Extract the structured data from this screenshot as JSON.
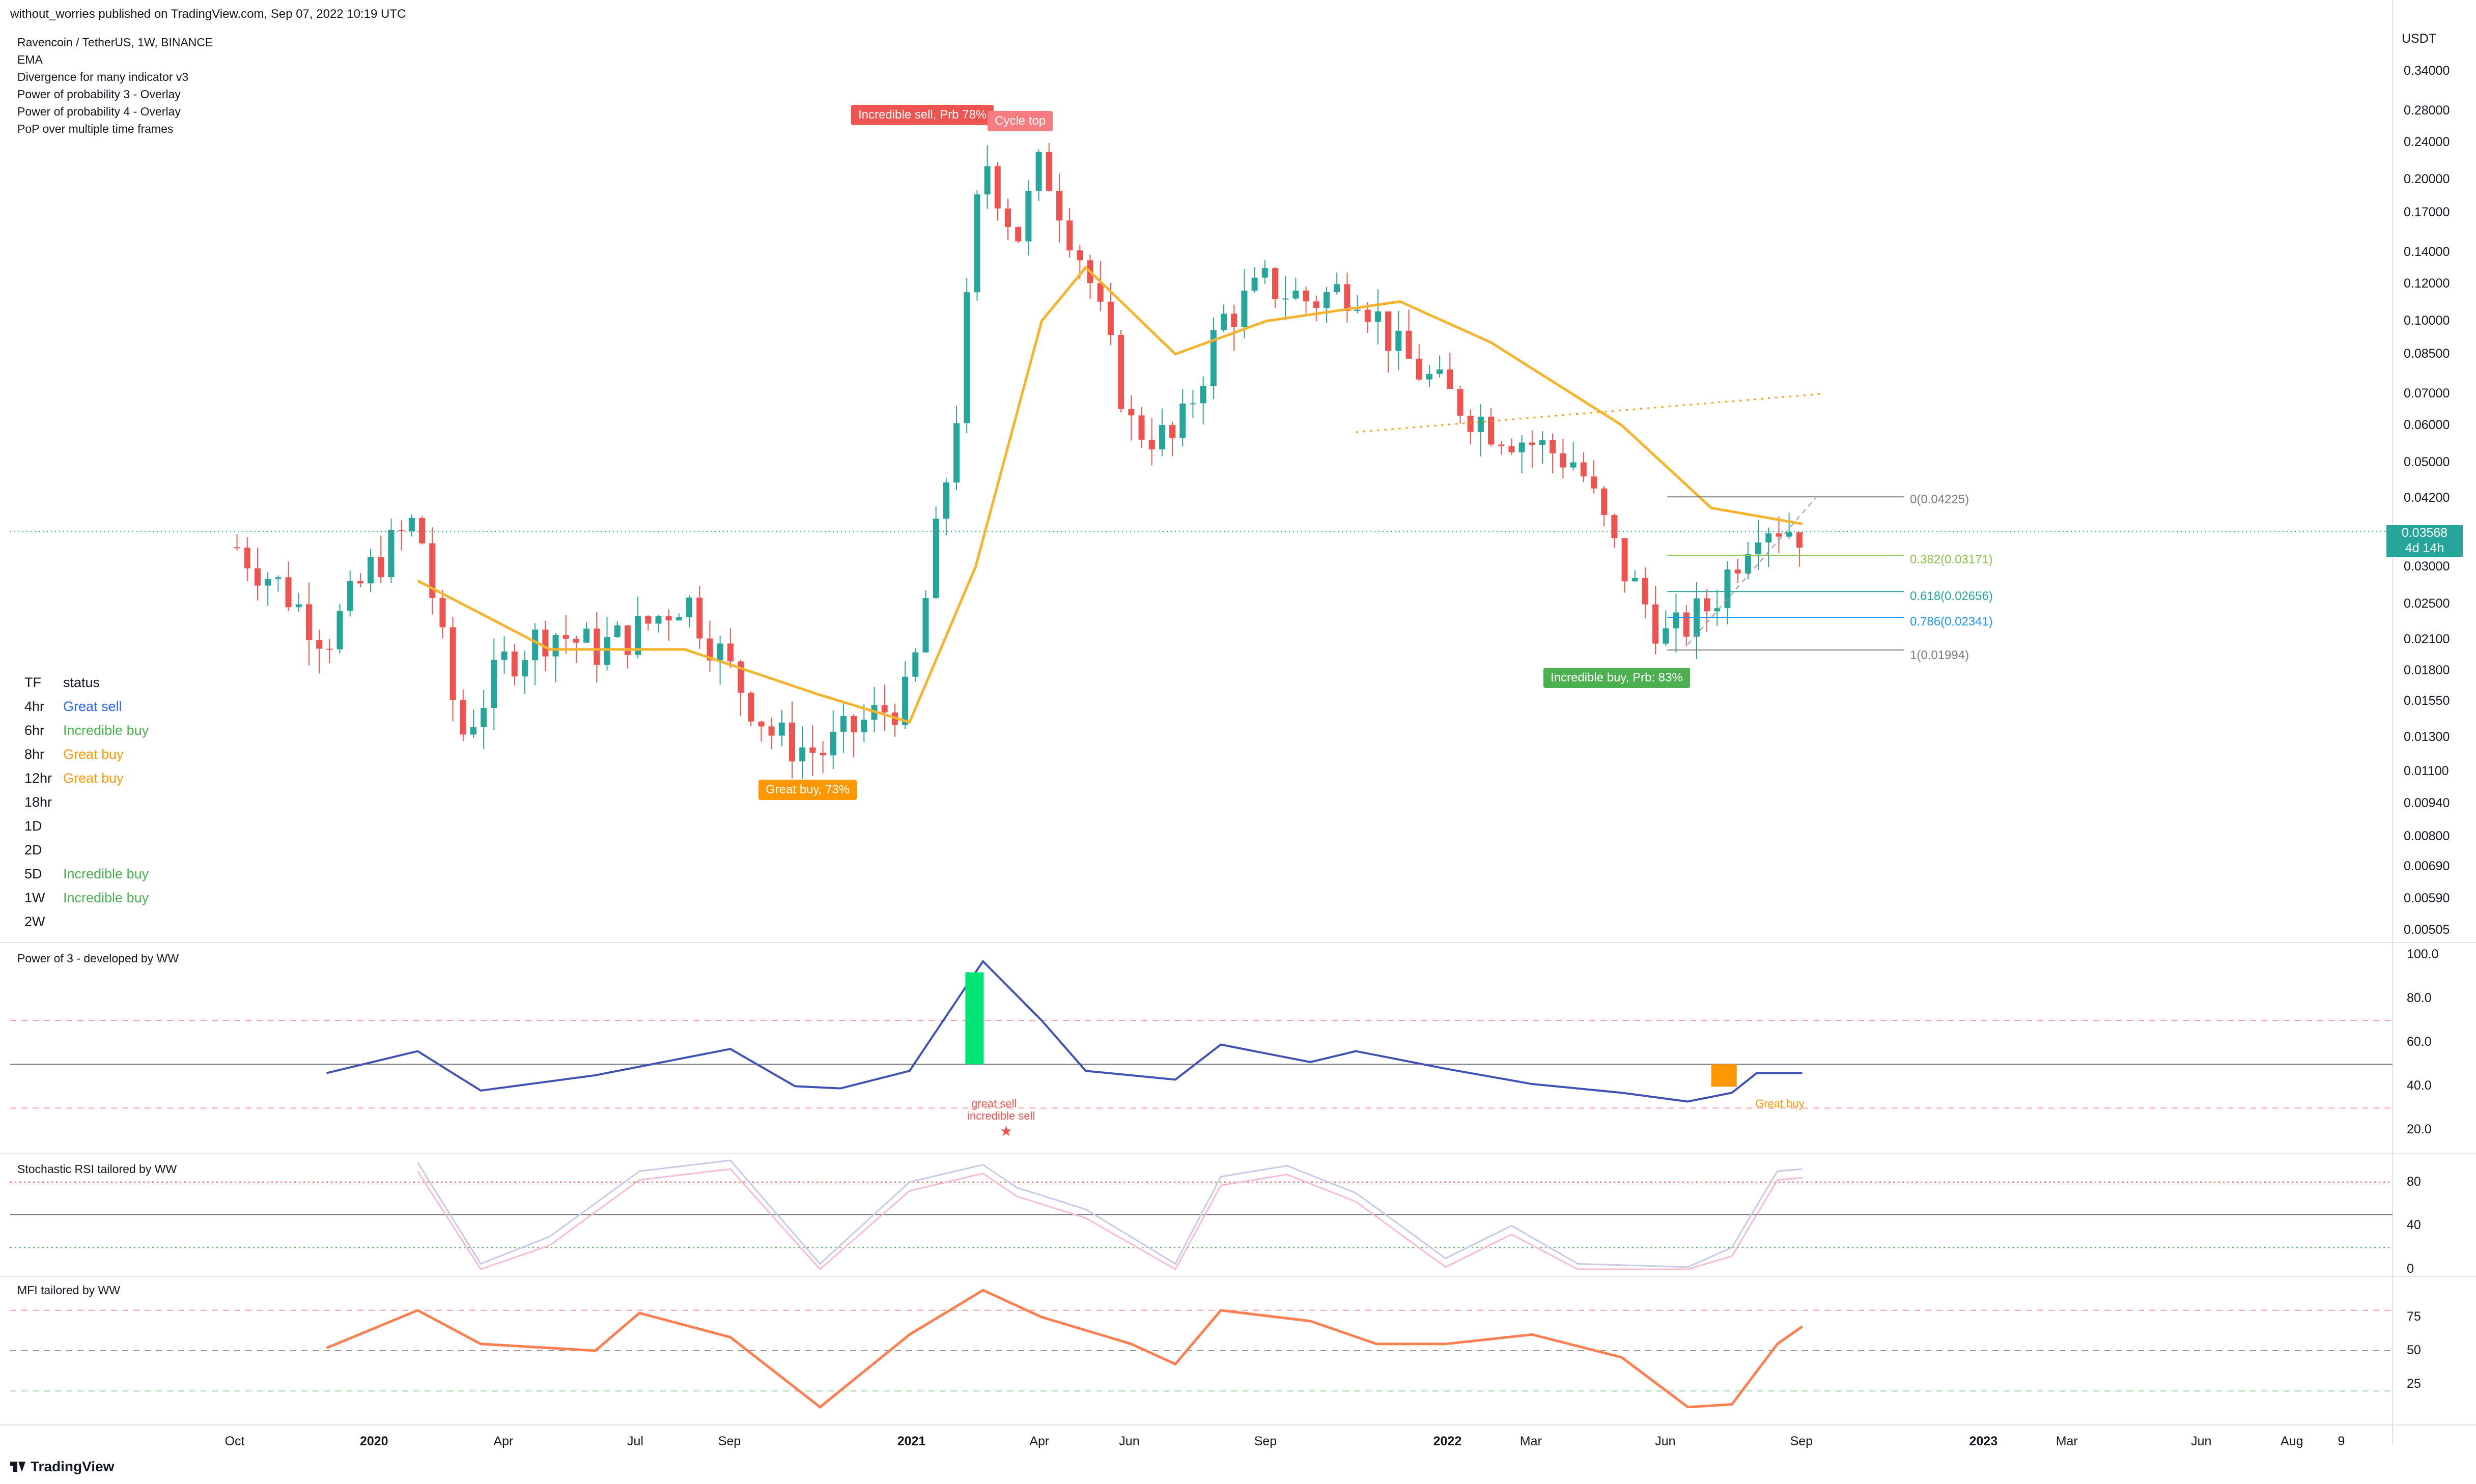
{
  "header": {
    "publish": "without_worries published on TradingView.com, Sep 07, 2022 10:19 UTC"
  },
  "legend": {
    "symbol": "Ravencoin / TetherUS, 1W, BINANCE",
    "indicators": [
      "EMA",
      "Divergence for many indicator v3",
      "Power of probability 3 - Overlay",
      "Power of probability 4 - Overlay",
      "PoP over multiple time frames"
    ]
  },
  "status_table": {
    "header": {
      "tf": "TF",
      "status": "status"
    },
    "rows": [
      {
        "tf": "4hr",
        "status": "Great sell",
        "color": "#2962ff"
      },
      {
        "tf": "6hr",
        "status": "Incredible buy",
        "color": "#4caf50"
      },
      {
        "tf": "8hr",
        "status": "Great buy",
        "color": "#ff9800"
      },
      {
        "tf": "12hr",
        "status": "Great buy",
        "color": "#ff9800"
      },
      {
        "tf": "18hr",
        "status": "",
        "color": "#131722"
      },
      {
        "tf": "1D",
        "status": "",
        "color": "#131722"
      },
      {
        "tf": "2D",
        "status": "",
        "color": "#131722"
      },
      {
        "tf": "5D",
        "status": "Incredible buy",
        "color": "#4caf50"
      },
      {
        "tf": "1W",
        "status": "Incredible buy",
        "color": "#4caf50"
      },
      {
        "tf": "2W",
        "status": "",
        "color": "#131722"
      }
    ]
  },
  "annotations": {
    "incredible_sell": "Incredible sell, Prb 78%",
    "cycle_top": "Cycle top",
    "great_buy": "Great buy,  73%",
    "incredible_buy": "Incredible buy, Prb: 83%",
    "great_sell_text": "great sell",
    "incredible_sell_text": "incredible sell",
    "great_buy_text": "Great buy"
  },
  "fib": {
    "levels": [
      "0(0.04225)",
      "0.382(0.03171)",
      "0.618(0.02656)",
      "0.786(0.02341)",
      "1(0.01994)"
    ],
    "colors": [
      "#787b86",
      "#8bc34a",
      "#26a69a",
      "#2196f3",
      "#787b86"
    ]
  },
  "price_axis": {
    "unit": "USDT",
    "ticks": [
      "0.34000",
      "0.28000",
      "0.24000",
      "0.20000",
      "0.17000",
      "0.14000",
      "0.12000",
      "0.10000",
      "0.08500",
      "0.07000",
      "0.06000",
      "0.05000",
      "0.04200",
      "0.03000",
      "0.02500",
      "0.02100",
      "0.01800",
      "0.01550",
      "0.01300",
      "0.01100",
      "0.00940",
      "0.00800",
      "0.00690",
      "0.00590",
      "0.00505"
    ],
    "last_price": "0.03568",
    "countdown": "4d 14h"
  },
  "time_axis": {
    "ticks": [
      "Oct",
      "2020",
      "Apr",
      "Jul",
      "Sep",
      "2021",
      "Apr",
      "Jun",
      "Sep",
      "2022",
      "Mar",
      "Jun",
      "Sep",
      "2023",
      "Mar",
      "Jun",
      "Aug",
      "9"
    ],
    "bold": [
      "2020",
      "2021",
      "2022",
      "2023"
    ]
  },
  "panes": {
    "pop3": {
      "title": "Power of 3 - developed by WW",
      "ticks": [
        "100.0",
        "80.0",
        "60.0",
        "40.0",
        "20.0"
      ]
    },
    "stoch": {
      "title": "Stochastic RSI tailored by WW",
      "ticks": [
        "80",
        "40",
        "0"
      ]
    },
    "mfi": {
      "title": "MFI tailored by WW",
      "ticks": [
        "75",
        "50",
        "25"
      ]
    }
  },
  "footer": {
    "brand": "TradingView"
  },
  "colors": {
    "up": "#26a69a",
    "down": "#ef5350",
    "ema": "#f7b32b",
    "accent": "#2962ff"
  },
  "chart_data": [
    {
      "type": "candlestick",
      "title": "Ravencoin / TetherUS, 1W, BINANCE",
      "ylabel": "USDT",
      "yscale": "log",
      "ylim": [
        0.00505,
        0.34
      ],
      "xlim": [
        "2019-09",
        "2023-09"
      ],
      "series": [
        {
          "name": "RVNUSDT close (approx.)",
          "points": [
            [
              "2019-10-01",
              0.033
            ],
            [
              "2019-11-01",
              0.027
            ],
            [
              "2019-12-01",
              0.021
            ],
            [
              "2020-01-01",
              0.03
            ],
            [
              "2020-02-01",
              0.038
            ],
            [
              "2020-03-01",
              0.013
            ],
            [
              "2020-04-01",
              0.019
            ],
            [
              "2020-05-01",
              0.022
            ],
            [
              "2020-06-01",
              0.02
            ],
            [
              "2020-07-01",
              0.022
            ],
            [
              "2020-08-01",
              0.026
            ],
            [
              "2020-09-01",
              0.018
            ],
            [
              "2020-10-01",
              0.013
            ],
            [
              "2020-11-01",
              0.012
            ],
            [
              "2020-12-01",
              0.014
            ],
            [
              "2021-01-01",
              0.016
            ],
            [
              "2021-02-01",
              0.06
            ],
            [
              "2021-02-20",
              0.23
            ],
            [
              "2021-03-15",
              0.15
            ],
            [
              "2021-04-01",
              0.22
            ],
            [
              "2021-05-01",
              0.13
            ],
            [
              "2021-06-01",
              0.06
            ],
            [
              "2021-07-01",
              0.055
            ],
            [
              "2021-08-01",
              0.1
            ],
            [
              "2021-09-01",
              0.12
            ],
            [
              "2021-10-01",
              0.11
            ],
            [
              "2021-11-01",
              0.12
            ],
            [
              "2021-12-01",
              0.085
            ],
            [
              "2022-01-01",
              0.07
            ],
            [
              "2022-02-01",
              0.06
            ],
            [
              "2022-03-01",
              0.055
            ],
            [
              "2022-04-01",
              0.05
            ],
            [
              "2022-05-01",
              0.03
            ],
            [
              "2022-06-01",
              0.021
            ],
            [
              "2022-07-01",
              0.025
            ],
            [
              "2022-08-01",
              0.038
            ],
            [
              "2022-09-01",
              0.03568
            ]
          ]
        },
        {
          "name": "EMA",
          "points": [
            [
              "2020-02-01",
              0.028
            ],
            [
              "2020-05-01",
              0.02
            ],
            [
              "2020-08-01",
              0.02
            ],
            [
              "2020-11-01",
              0.016
            ],
            [
              "2021-01-01",
              0.014
            ],
            [
              "2021-02-15",
              0.03
            ],
            [
              "2021-04-01",
              0.1
            ],
            [
              "2021-05-01",
              0.13
            ],
            [
              "2021-07-01",
              0.085
            ],
            [
              "2021-09-01",
              0.1
            ],
            [
              "2021-12-01",
              0.11
            ],
            [
              "2022-02-01",
              0.09
            ],
            [
              "2022-05-01",
              0.06
            ],
            [
              "2022-07-01",
              0.04
            ],
            [
              "2022-09-01",
              0.037
            ]
          ]
        }
      ]
    },
    {
      "type": "line",
      "title": "Power of 3 - developed by WW",
      "ylim": [
        15,
        100
      ],
      "series": [
        {
          "name": "Power of 3",
          "points": [
            [
              "2019-12-01",
              46
            ],
            [
              "2020-02-01",
              56
            ],
            [
              "2020-03-15",
              38
            ],
            [
              "2020-06-01",
              45
            ],
            [
              "2020-09-01",
              57
            ],
            [
              "2020-10-15",
              40
            ],
            [
              "2020-11-15",
              39
            ],
            [
              "2021-01-01",
              47
            ],
            [
              "2021-02-20",
              97
            ],
            [
              "2021-04-01",
              70
            ],
            [
              "2021-05-01",
              47
            ],
            [
              "2021-07-01",
              43
            ],
            [
              "2021-08-01",
              59
            ],
            [
              "2021-10-01",
              51
            ],
            [
              "2021-11-01",
              56
            ],
            [
              "2022-01-01",
              48
            ],
            [
              "2022-03-01",
              41
            ],
            [
              "2022-05-01",
              37
            ],
            [
              "2022-06-15",
              33
            ],
            [
              "2022-07-15",
              37
            ],
            [
              "2022-08-01",
              46
            ],
            [
              "2022-09-01",
              46
            ]
          ]
        }
      ]
    },
    {
      "type": "line",
      "title": "Stochastic RSI tailored by WW",
      "ylim": [
        0,
        100
      ],
      "series": [
        {
          "name": "Stoch RSI",
          "points": [
            [
              "2020-02-01",
              98
            ],
            [
              "2020-03-15",
              5
            ],
            [
              "2020-05-01",
              30
            ],
            [
              "2020-07-01",
              90
            ],
            [
              "2020-09-01",
              100
            ],
            [
              "2020-11-01",
              5
            ],
            [
              "2021-01-01",
              80
            ],
            [
              "2021-02-20",
              96
            ],
            [
              "2021-03-15",
              75
            ],
            [
              "2021-05-01",
              55
            ],
            [
              "2021-07-01",
              5
            ],
            [
              "2021-08-01",
              85
            ],
            [
              "2021-09-15",
              95
            ],
            [
              "2021-11-01",
              70
            ],
            [
              "2022-01-01",
              10
            ],
            [
              "2022-02-15",
              40
            ],
            [
              "2022-04-01",
              5
            ],
            [
              "2022-06-15",
              2
            ],
            [
              "2022-07-15",
              20
            ],
            [
              "2022-08-15",
              90
            ],
            [
              "2022-09-01",
              92
            ]
          ]
        }
      ]
    },
    {
      "type": "line",
      "title": "MFI tailored by WW",
      "ylim": [
        0,
        100
      ],
      "series": [
        {
          "name": "MFI",
          "points": [
            [
              "2019-12-01",
              52
            ],
            [
              "2020-02-01",
              80
            ],
            [
              "2020-03-15",
              55
            ],
            [
              "2020-06-01",
              50
            ],
            [
              "2020-07-01",
              78
            ],
            [
              "2020-09-01",
              60
            ],
            [
              "2020-11-01",
              8
            ],
            [
              "2021-01-01",
              62
            ],
            [
              "2021-02-20",
              95
            ],
            [
              "2021-04-01",
              75
            ],
            [
              "2021-06-01",
              55
            ],
            [
              "2021-07-01",
              40
            ],
            [
              "2021-08-01",
              80
            ],
            [
              "2021-10-01",
              72
            ],
            [
              "2021-11-15",
              55
            ],
            [
              "2022-01-01",
              55
            ],
            [
              "2022-03-01",
              62
            ],
            [
              "2022-05-01",
              45
            ],
            [
              "2022-06-15",
              8
            ],
            [
              "2022-07-15",
              10
            ],
            [
              "2022-08-15",
              55
            ],
            [
              "2022-09-01",
              68
            ]
          ]
        }
      ]
    }
  ]
}
